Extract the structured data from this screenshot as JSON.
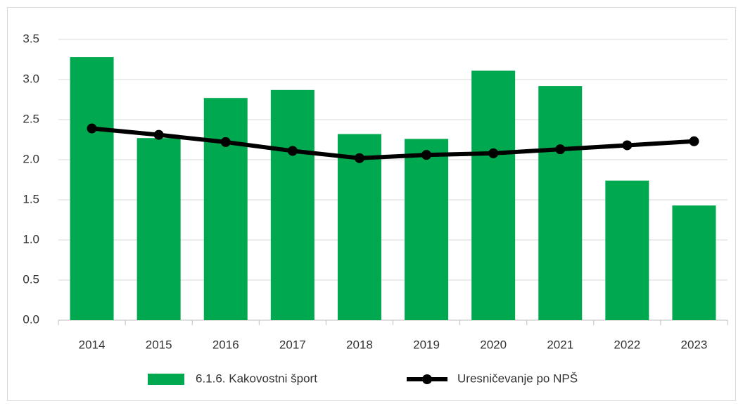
{
  "chart_data": {
    "type": "bar",
    "categories": [
      "2014",
      "2015",
      "2016",
      "2017",
      "2018",
      "2019",
      "2020",
      "2021",
      "2022",
      "2023"
    ],
    "series": [
      {
        "name": "6.1.6. Kakovostni šport",
        "type": "bar",
        "color": "#00a94f",
        "values": [
          3.28,
          2.27,
          2.77,
          2.87,
          2.32,
          2.26,
          3.11,
          2.92,
          1.74,
          1.43
        ]
      },
      {
        "name": "Uresničevanje po NPŠ",
        "type": "line",
        "color": "#000000",
        "values": [
          2.39,
          2.31,
          2.22,
          2.11,
          2.02,
          2.06,
          2.08,
          2.13,
          2.18,
          2.23
        ]
      }
    ],
    "ylim": [
      0,
      3.5
    ],
    "yticks": [
      {
        "value": 0,
        "label": "0.0"
      },
      0.5,
      {
        "value": 1,
        "label": "1.0"
      },
      1.5,
      {
        "value": 2,
        "label": "2.0"
      },
      2.5,
      {
        "value": 3,
        "label": "3.0"
      },
      3.5
    ],
    "grid": true,
    "legend": "bottom"
  }
}
